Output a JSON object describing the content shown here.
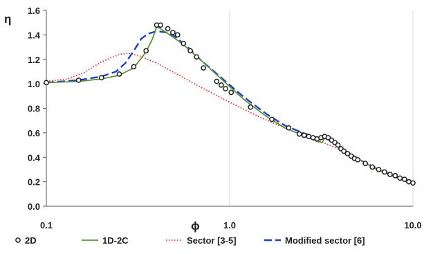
{
  "chart_data": {
    "type": "line",
    "title": "",
    "xlabel": "ϕ",
    "ylabel": "η",
    "x_scale": "log",
    "xlim": [
      0.1,
      10.0
    ],
    "ylim": [
      0.0,
      1.6
    ],
    "grid": {
      "vertical": true,
      "horizontal": false
    },
    "legend_position": "bottom",
    "x_ticks": [
      {
        "value": 0.1,
        "label": "0.1"
      },
      {
        "value": 1.0,
        "label": "1.0"
      },
      {
        "value": 10.0,
        "label": "10.0"
      }
    ],
    "y_ticks": [
      {
        "value": 0.0,
        "label": "0.0"
      },
      {
        "value": 0.2,
        "label": "0.2"
      },
      {
        "value": 0.4,
        "label": "0.4"
      },
      {
        "value": 0.6,
        "label": "0.6"
      },
      {
        "value": 0.8,
        "label": "0.8"
      },
      {
        "value": 1.0,
        "label": "1.0"
      },
      {
        "value": 1.2,
        "label": "1.2"
      },
      {
        "value": 1.4,
        "label": "1.4"
      },
      {
        "value": 1.6,
        "label": "1.6"
      }
    ],
    "series": [
      {
        "name": "2D",
        "style": "markers",
        "marker": "open-circle",
        "color": "#222222",
        "x": [
          0.1,
          0.15,
          0.2,
          0.25,
          0.3,
          0.35,
          0.4,
          0.42,
          0.46,
          0.49,
          0.52,
          0.56,
          0.61,
          0.66,
          0.72,
          0.85,
          0.9,
          0.95,
          1.02,
          1.3,
          1.7,
          2.1,
          2.4,
          2.55,
          2.7,
          2.85,
          3.0,
          3.15,
          3.3,
          3.45,
          3.6,
          3.75,
          3.9,
          4.05,
          4.2,
          4.4,
          4.6,
          4.8,
          5.0,
          5.5,
          6.0,
          6.5,
          7.0,
          7.5,
          8.0,
          8.5,
          9.0,
          9.5,
          10.0
        ],
        "y": [
          1.01,
          1.03,
          1.05,
          1.08,
          1.14,
          1.27,
          1.48,
          1.48,
          1.45,
          1.42,
          1.4,
          1.33,
          1.27,
          1.22,
          1.13,
          1.02,
          0.99,
          0.96,
          0.93,
          0.81,
          0.71,
          0.64,
          0.59,
          0.58,
          0.57,
          0.56,
          0.55,
          0.56,
          0.57,
          0.56,
          0.54,
          0.52,
          0.5,
          0.47,
          0.45,
          0.43,
          0.41,
          0.39,
          0.38,
          0.35,
          0.32,
          0.3,
          0.28,
          0.26,
          0.25,
          0.23,
          0.22,
          0.2,
          0.19
        ]
      },
      {
        "name": "1D-2C",
        "style": "solid",
        "color": "#5c9239",
        "x": [
          0.1,
          0.15,
          0.2,
          0.25,
          0.3,
          0.35,
          0.38,
          0.4,
          0.45,
          0.55,
          0.7,
          0.9,
          1.2,
          1.6,
          2.0,
          2.4,
          2.8,
          3.0,
          3.2,
          3.3,
          3.6,
          4.0,
          5.0,
          6.0,
          8.0,
          10.0
        ],
        "y": [
          1.01,
          1.02,
          1.04,
          1.07,
          1.13,
          1.26,
          1.37,
          1.47,
          1.42,
          1.33,
          1.19,
          1.04,
          0.87,
          0.73,
          0.64,
          0.59,
          0.55,
          0.53,
          0.52,
          0.56,
          0.53,
          0.48,
          0.39,
          0.32,
          0.24,
          0.18
        ]
      },
      {
        "name": "Sector [3-5]",
        "style": "dotted",
        "color": "#e2231a",
        "x": [
          0.1,
          0.13,
          0.16,
          0.2,
          0.25,
          0.28,
          0.32,
          0.4,
          0.5,
          0.7,
          1.0,
          1.5,
          2.0,
          2.5,
          3.0,
          3.5,
          4.0,
          5.0,
          6.0,
          8.0,
          10.0
        ],
        "y": [
          1.02,
          1.04,
          1.09,
          1.18,
          1.24,
          1.25,
          1.23,
          1.17,
          1.09,
          0.97,
          0.85,
          0.72,
          0.64,
          0.58,
          0.54,
          0.5,
          0.46,
          0.39,
          0.33,
          0.25,
          0.19
        ]
      },
      {
        "name": "Modified sector [6]",
        "style": "dashed",
        "color": "#1f3fbf",
        "x": [
          0.1,
          0.15,
          0.2,
          0.24,
          0.27,
          0.3,
          0.33,
          0.36,
          0.4,
          0.45,
          0.5,
          0.6,
          0.7,
          0.9,
          1.2,
          1.6,
          2.0,
          2.5,
          3.0,
          3.3,
          3.6,
          4.0,
          5.0,
          6.0,
          8.0,
          10.0
        ],
        "y": [
          1.01,
          1.03,
          1.06,
          1.1,
          1.17,
          1.27,
          1.37,
          1.41,
          1.43,
          1.42,
          1.39,
          1.29,
          1.19,
          1.05,
          0.89,
          0.75,
          0.66,
          0.6,
          0.56,
          0.56,
          0.53,
          0.48,
          0.39,
          0.32,
          0.24,
          0.18
        ]
      }
    ]
  }
}
